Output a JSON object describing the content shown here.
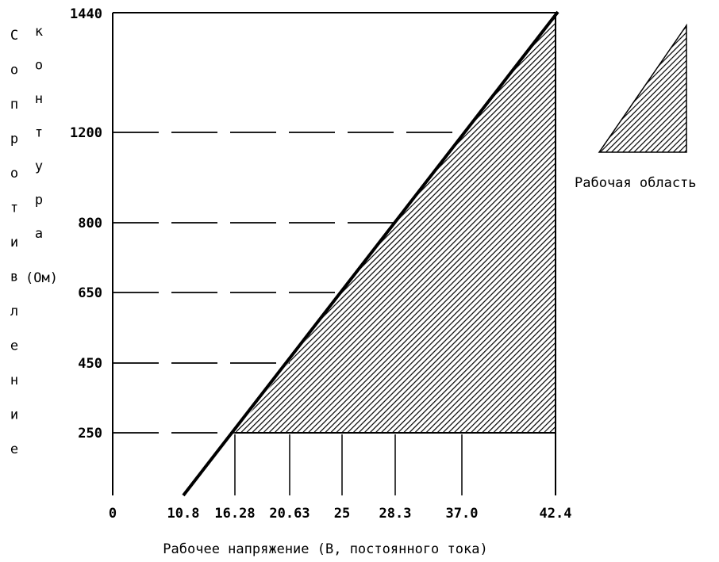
{
  "chart_data": {
    "type": "area",
    "xlabel": "Рабочее напряжение (В, постоянного тока)",
    "ylabel_col1": [
      "С",
      "о",
      "п",
      "р",
      "о",
      "т",
      "и",
      "в",
      "л",
      "е",
      "н",
      "и",
      "е"
    ],
    "ylabel_col2": [
      "к",
      "о",
      "н",
      "т",
      "у",
      "р",
      "а"
    ],
    "ylabel_unit": "(Ом)",
    "x_tick_labels": [
      "0",
      "10.8",
      "16.28",
      "20.63",
      "25",
      "28.3",
      "37.0",
      "42.4"
    ],
    "y_tick_labels": [
      "1440",
      "1200",
      "800",
      "650",
      "450",
      "250"
    ],
    "legend_label": "Рабочая область",
    "region": {
      "name": "Рабочая область",
      "boundary_line_points": [
        {
          "x": "10.8",
          "y": 0
        },
        {
          "x": "16.28",
          "y": 250
        },
        {
          "x": "20.63",
          "y": 450
        },
        {
          "x": "25",
          "y": 650
        },
        {
          "x": "28.3",
          "y": 800
        },
        {
          "x": "37.0",
          "y": 1200
        },
        {
          "x": "42.4",
          "y": 1440
        }
      ],
      "lower_bound_resistance": 250
    },
    "legend_placement": "top-right",
    "grid": "dashed horizontal lines at y ticks, vertical lines at x ticks"
  }
}
